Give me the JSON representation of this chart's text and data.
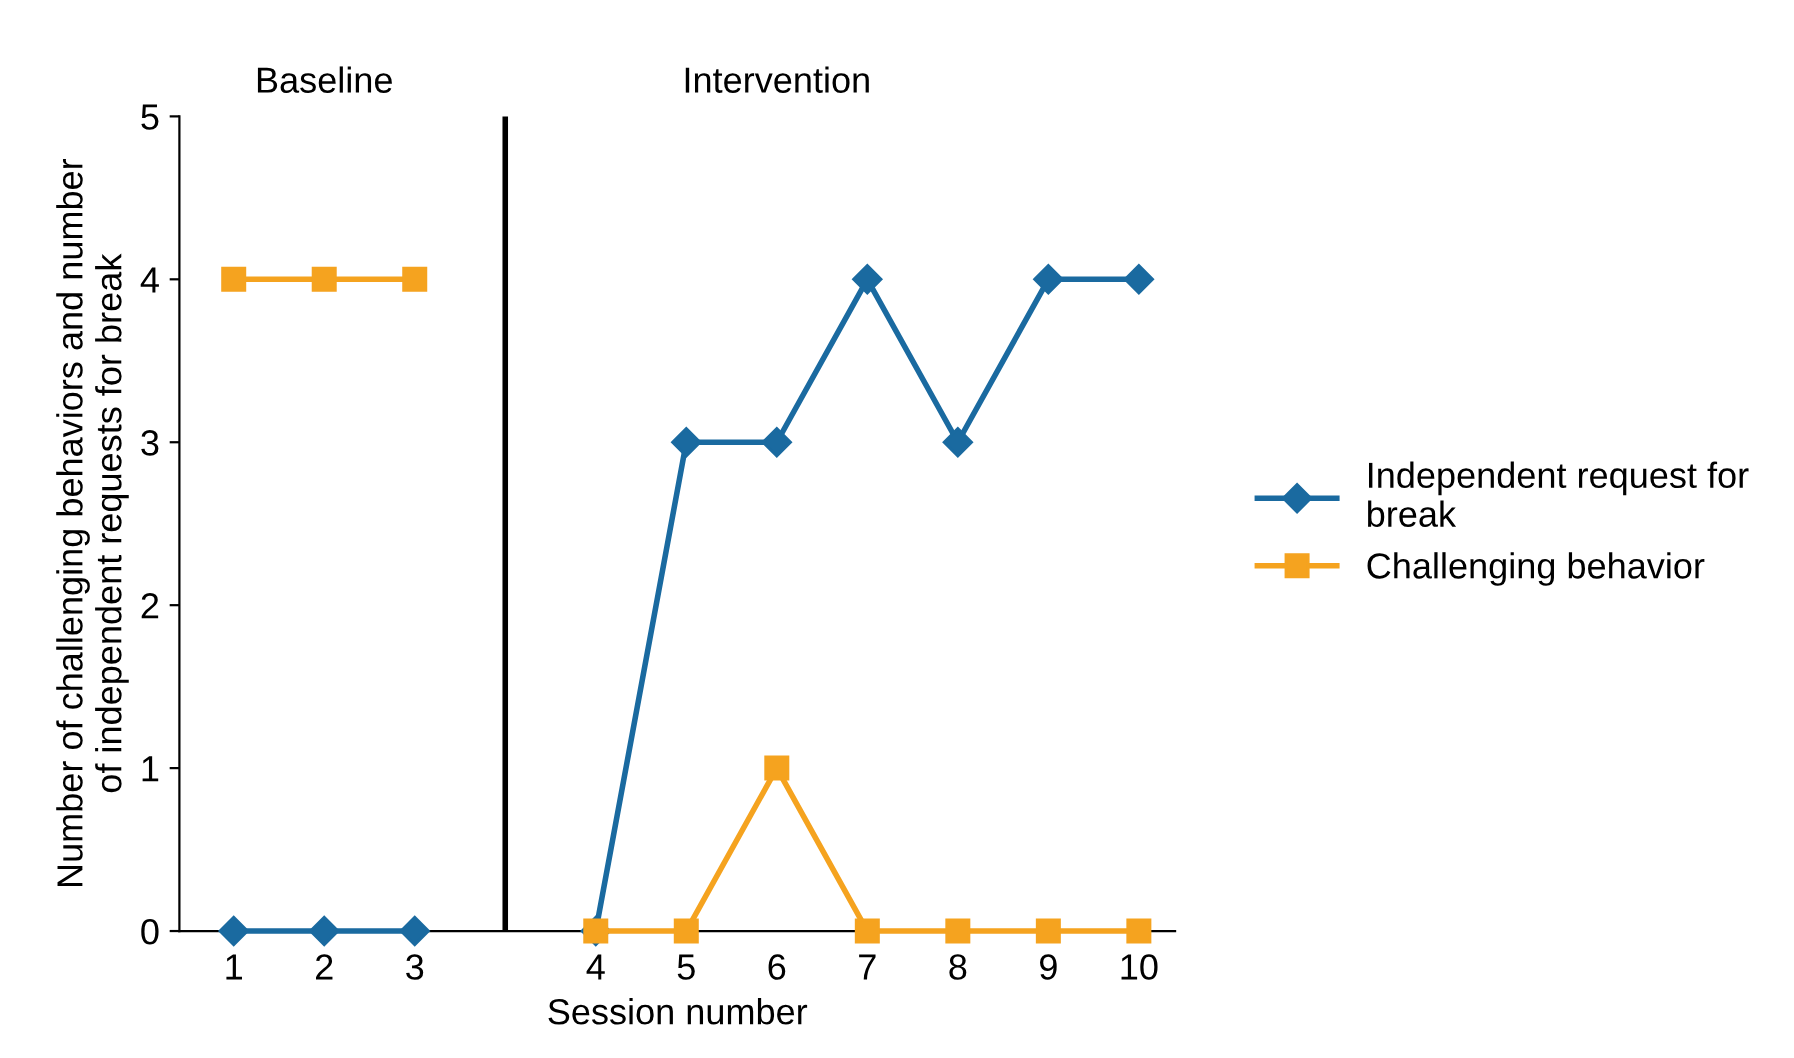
{
  "chart_data": {
    "type": "line",
    "xlabel": "Session number",
    "ylabel": "Number of challenging behaviors and number\nof independent requests for break",
    "categories": [
      "1",
      "2",
      "3",
      null,
      "4",
      "5",
      "6",
      "7",
      "8",
      "9",
      "10"
    ],
    "series": [
      {
        "name": "Independent request for\nbreak",
        "color": "#1a6aa0",
        "marker": "diamond",
        "values": [
          0,
          0,
          0,
          null,
          0,
          3,
          3,
          4,
          3,
          4,
          4
        ]
      },
      {
        "name": "Challenging behavior",
        "color": "#f5a31f",
        "marker": "square",
        "values": [
          4,
          4,
          4,
          null,
          0,
          0,
          1,
          0,
          0,
          0,
          0
        ]
      }
    ],
    "ref_lines": [
      {
        "axis": "x",
        "value": null,
        "color": "#000000"
      }
    ],
    "annotations": [
      "Baseline",
      "Intervention"
    ],
    "ylim": [
      0,
      5
    ],
    "yticks": [
      0,
      1,
      2,
      3,
      4,
      5
    ],
    "legend": "right",
    "line_style": "solid"
  }
}
